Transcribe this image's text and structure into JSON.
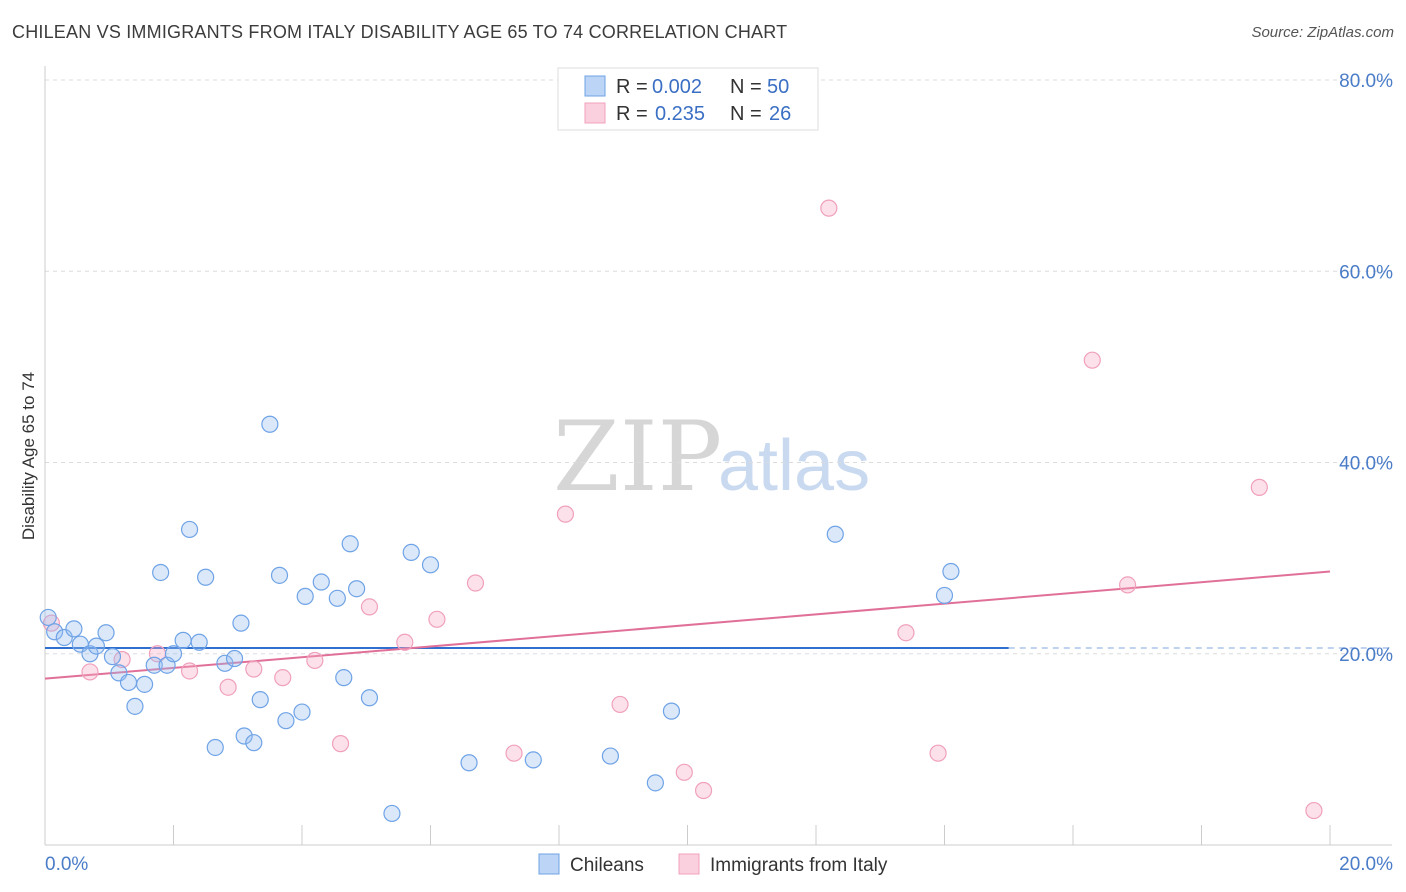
{
  "title": "CHILEAN VS IMMIGRANTS FROM ITALY DISABILITY AGE 65 TO 74 CORRELATION CHART",
  "source": "Source: ZipAtlas.com",
  "watermark": {
    "zip": "ZIP",
    "atlas": "atlas"
  },
  "legend": {
    "rows": [
      {
        "r_label": "R =",
        "r_value": "0.002",
        "n_label": "N =",
        "n_value": "50"
      },
      {
        "r_label": "R =",
        "r_value": "0.235",
        "n_label": "N =",
        "n_value": "26"
      }
    ]
  },
  "bottom_legend": [
    "Chileans",
    "Immigrants from Italy"
  ],
  "chart_data": {
    "type": "scatter",
    "title": "CHILEAN VS IMMIGRANTS FROM ITALY DISABILITY AGE 65 TO 74 CORRELATION CHART",
    "xlabel": "",
    "ylabel": "Disability Age 65 to 74",
    "xlim": [
      0,
      20
    ],
    "ylim": [
      0,
      80
    ],
    "y_ticks": [
      "20.0%",
      "40.0%",
      "60.0%",
      "80.0%"
    ],
    "x_ticks": [
      "0.0%",
      "20.0%"
    ],
    "grid": "horizontal-dashed",
    "legend_position": "top-center",
    "colors": {
      "chileans": "#6fa3e6",
      "italy": "#f0a0bc",
      "chileans_line": "#2f6fcf",
      "italy_line": "#e07098"
    },
    "series": [
      {
        "name": "Chileans",
        "trend": {
          "x": [
            0,
            15
          ],
          "y": [
            20.6,
            20.6
          ]
        },
        "points": [
          [
            0.05,
            23.8
          ],
          [
            0.15,
            22.3
          ],
          [
            0.3,
            21.7
          ],
          [
            0.45,
            22.6
          ],
          [
            0.55,
            21.0
          ],
          [
            0.7,
            20.0
          ],
          [
            0.8,
            20.8
          ],
          [
            0.95,
            22.2
          ],
          [
            1.05,
            19.7
          ],
          [
            1.15,
            18.0
          ],
          [
            1.3,
            17.0
          ],
          [
            1.4,
            14.5
          ],
          [
            1.55,
            16.8
          ],
          [
            1.7,
            18.8
          ],
          [
            1.8,
            28.5
          ],
          [
            1.9,
            18.8
          ],
          [
            2.0,
            20.0
          ],
          [
            2.15,
            21.4
          ],
          [
            2.25,
            33.0
          ],
          [
            2.4,
            21.2
          ],
          [
            2.5,
            28.0
          ],
          [
            2.65,
            10.2
          ],
          [
            2.8,
            19.0
          ],
          [
            2.95,
            19.5
          ],
          [
            3.05,
            23.2
          ],
          [
            3.1,
            11.4
          ],
          [
            3.25,
            10.7
          ],
          [
            3.35,
            15.2
          ],
          [
            3.5,
            44.0
          ],
          [
            3.65,
            28.2
          ],
          [
            3.75,
            13.0
          ],
          [
            4.0,
            13.9
          ],
          [
            4.05,
            26.0
          ],
          [
            4.3,
            27.5
          ],
          [
            4.55,
            25.8
          ],
          [
            4.65,
            17.5
          ],
          [
            4.75,
            31.5
          ],
          [
            4.85,
            26.8
          ],
          [
            5.05,
            15.4
          ],
          [
            5.4,
            3.3
          ],
          [
            5.7,
            30.6
          ],
          [
            6.0,
            29.3
          ],
          [
            6.6,
            8.6
          ],
          [
            7.6,
            8.9
          ],
          [
            8.8,
            9.3
          ],
          [
            9.5,
            6.5
          ],
          [
            9.75,
            14.0
          ],
          [
            12.3,
            32.5
          ],
          [
            14.0,
            26.1
          ],
          [
            14.1,
            28.6
          ]
        ]
      },
      {
        "name": "Immigrants from Italy",
        "trend": {
          "x": [
            0,
            20
          ],
          "y": [
            17.4,
            28.6
          ]
        },
        "points": [
          [
            0.1,
            23.2
          ],
          [
            0.7,
            18.1
          ],
          [
            1.2,
            19.4
          ],
          [
            1.75,
            20.0
          ],
          [
            2.25,
            18.2
          ],
          [
            2.85,
            16.5
          ],
          [
            3.25,
            18.4
          ],
          [
            3.7,
            17.5
          ],
          [
            4.2,
            19.3
          ],
          [
            4.6,
            10.6
          ],
          [
            5.05,
            24.9
          ],
          [
            5.6,
            21.2
          ],
          [
            6.1,
            23.6
          ],
          [
            6.7,
            27.4
          ],
          [
            7.3,
            9.6
          ],
          [
            8.1,
            34.6
          ],
          [
            8.95,
            14.7
          ],
          [
            9.95,
            7.6
          ],
          [
            10.25,
            5.7
          ],
          [
            12.2,
            66.6
          ],
          [
            13.4,
            22.2
          ],
          [
            13.9,
            9.6
          ],
          [
            16.3,
            50.7
          ],
          [
            16.85,
            27.2
          ],
          [
            18.9,
            37.4
          ],
          [
            19.75,
            3.6
          ]
        ]
      }
    ]
  }
}
